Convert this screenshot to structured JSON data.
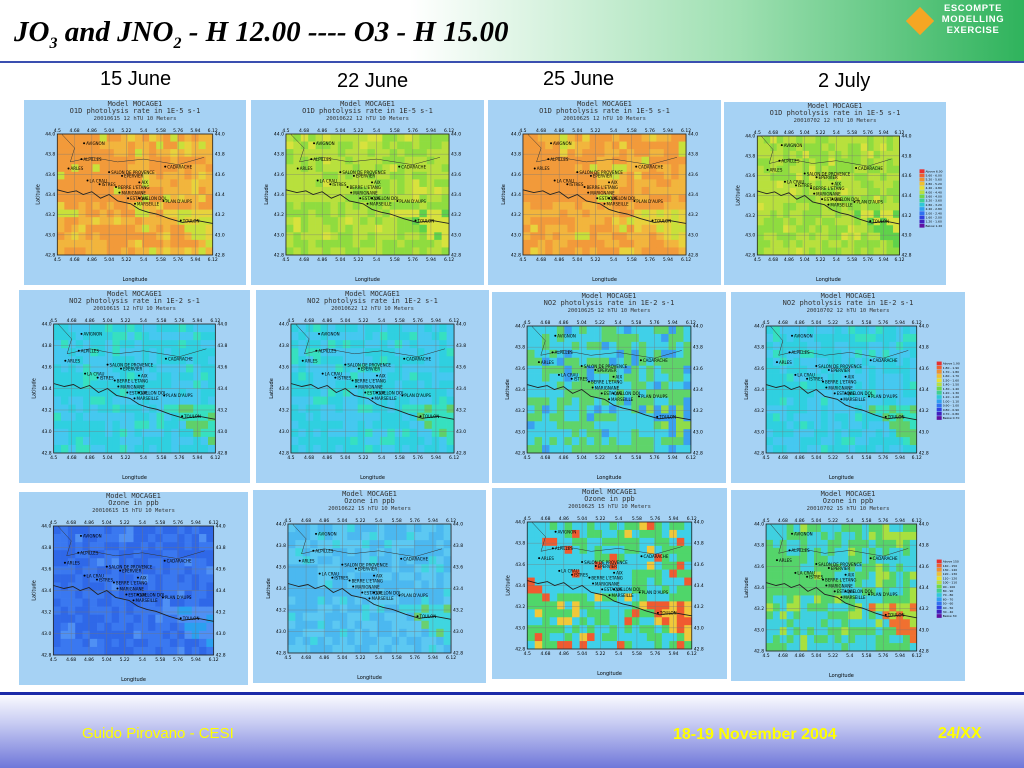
{
  "slide": {
    "title_a": "JO",
    "title_a_sub": "3",
    "title_b": " and JNO",
    "title_b_sub": "2",
    "title_c": " - H 12.00  ---- O3 - H 15.00",
    "logo": [
      "ESCOMPTE",
      "MODELLING",
      "EXERCISE"
    ],
    "dates": [
      "15 June",
      "22 June",
      "25 June",
      "2 July"
    ],
    "author": "Guido Pirovano - CESI",
    "footer_date": "18-19 November 2004",
    "page": "24/XX",
    "colors": {
      "title_band": "#2fb35c",
      "footer_text": "#ffff00",
      "footer_band": "#6f77d9",
      "panel_bg": "#a6d2f4"
    }
  },
  "common": {
    "model_title": "Model MOCAGE1",
    "x_ticks": [
      "4.5",
      "4.68",
      "4.86",
      "5.04",
      "5.22",
      "5.4",
      "5.58",
      "5.76",
      "5.94",
      "6.12"
    ],
    "y_ticks": [
      "44.0",
      "43.8",
      "43.6",
      "43.4",
      "43.2",
      "43.0",
      "42.8"
    ],
    "x_label": "Longitude",
    "y_label": "Latitude",
    "places": [
      {
        "name": "AVIGNON",
        "lon": 4.81,
        "lat": 43.95
      },
      {
        "name": "ALPILLES",
        "lon": 4.78,
        "lat": 43.78
      },
      {
        "name": "ARLES",
        "lon": 4.63,
        "lat": 43.68
      },
      {
        "name": "CADARACHE",
        "lon": 5.75,
        "lat": 43.7
      },
      {
        "name": "SALON DE PROVENCE",
        "lon": 5.1,
        "lat": 43.64
      },
      {
        "name": "EPERVIER",
        "lon": 5.25,
        "lat": 43.6
      },
      {
        "name": "LA CRAU",
        "lon": 4.85,
        "lat": 43.55
      },
      {
        "name": "AIX",
        "lon": 5.45,
        "lat": 43.53
      },
      {
        "name": "ISTRES",
        "lon": 4.99,
        "lat": 43.51
      },
      {
        "name": "BERRE L'ETANG",
        "lon": 5.18,
        "lat": 43.48
      },
      {
        "name": "MARIGNANE",
        "lon": 5.22,
        "lat": 43.42
      },
      {
        "name": "VALLON DOL",
        "lon": 5.45,
        "lat": 43.36
      },
      {
        "name": "ESTAQUE",
        "lon": 5.32,
        "lat": 43.36
      },
      {
        "name": "MARSEILLE",
        "lon": 5.4,
        "lat": 43.3
      },
      {
        "name": "PLAN D'AUPS",
        "lon": 5.73,
        "lat": 43.33
      },
      {
        "name": "TOULON",
        "lon": 5.93,
        "lat": 43.12
      }
    ]
  },
  "rows": [
    {
      "name": "jo3",
      "variable": "O1D photolysis rate in 1E-5 s-1",
      "maps": [
        {
          "date": "20010615",
          "time": "12 hTU",
          "level": "10 Meters",
          "scheme": "warm",
          "high": 0.6,
          "legend": false
        },
        {
          "date": "20010622",
          "time": "12 hTU",
          "level": "10 Meters",
          "scheme": "greenish",
          "high": 0.2,
          "legend": false
        },
        {
          "date": "20010625",
          "time": "12 hTU",
          "level": "10 Meters",
          "scheme": "warm",
          "high": 0.45,
          "legend": false
        },
        {
          "date": "20010702",
          "time": "12 hTU",
          "level": "10 Meters",
          "scheme": "greenish",
          "high": 0.15,
          "legend": true,
          "legend_values": [
            "Above 6.00",
            "5.60 - 6.00",
            "5.20 - 5.60",
            "4.80 - 5.20",
            "4.40 - 4.80",
            "4.00 - 4.40",
            "3.60 - 4.00",
            "3.20 - 3.60",
            "2.80 - 3.20",
            "2.40 - 2.80",
            "2.00 - 2.40",
            "1.60 - 2.00",
            "1.20 - 1.60",
            "Below 1.20"
          ]
        }
      ]
    },
    {
      "name": "jno2",
      "variable": "NO2 photolysis rate in 1E-2 s-1",
      "maps": [
        {
          "date": "20010615",
          "time": "12 hTU",
          "level": "10 Meters",
          "scheme": "cool",
          "high": 0.1,
          "legend": false
        },
        {
          "date": "20010622",
          "time": "12 hTU",
          "level": "10 Meters",
          "scheme": "cool",
          "high": 0.05,
          "legend": false
        },
        {
          "date": "20010625",
          "time": "12 hTU",
          "level": "10 Meters",
          "scheme": "coolmix",
          "high": 0.1,
          "legend": false
        },
        {
          "date": "20010702",
          "time": "12 hTU",
          "level": "10 Meters",
          "scheme": "cool",
          "high": 0.15,
          "legend": true,
          "legend_values": [
            "Above 1.90",
            "1.80 - 1.90",
            "1.70 - 1.80",
            "1.60 - 1.70",
            "1.50 - 1.60",
            "1.40 - 1.50",
            "1.30 - 1.40",
            "1.20 - 1.30",
            "1.10 - 1.20",
            "1.00 - 1.10",
            "0.90 - 1.00",
            "0.80 - 0.90",
            "0.70 - 0.80",
            "Below 0.70"
          ]
        }
      ]
    },
    {
      "name": "ozone",
      "variable": "Ozone in ppb",
      "maps": [
        {
          "date": "20010615",
          "time": "15 hTU",
          "level": "10 Meters",
          "scheme": "blue",
          "high": 0,
          "legend": false
        },
        {
          "date": "20010622",
          "time": "15 hTU",
          "level": "10 Meters",
          "scheme": "bluegreen",
          "high": 0.1,
          "legend": false
        },
        {
          "date": "20010625",
          "time": "15 hTU",
          "level": "10 Meters",
          "scheme": "hot",
          "high": 0.5,
          "legend": false
        },
        {
          "date": "20010702",
          "time": "15 hTU",
          "level": "10 Meters",
          "scheme": "greenhot",
          "high": 0.3,
          "legend": true,
          "legend_values": [
            "Above 150",
            "140 - 150",
            "130 - 140",
            "120 - 130",
            "110 - 120",
            "100 - 110",
            "90 - 100",
            "80 - 90",
            "70 - 80",
            "60 - 70",
            "50 - 60",
            "40 - 50",
            "30 - 40",
            "Below 30"
          ]
        }
      ]
    }
  ]
}
